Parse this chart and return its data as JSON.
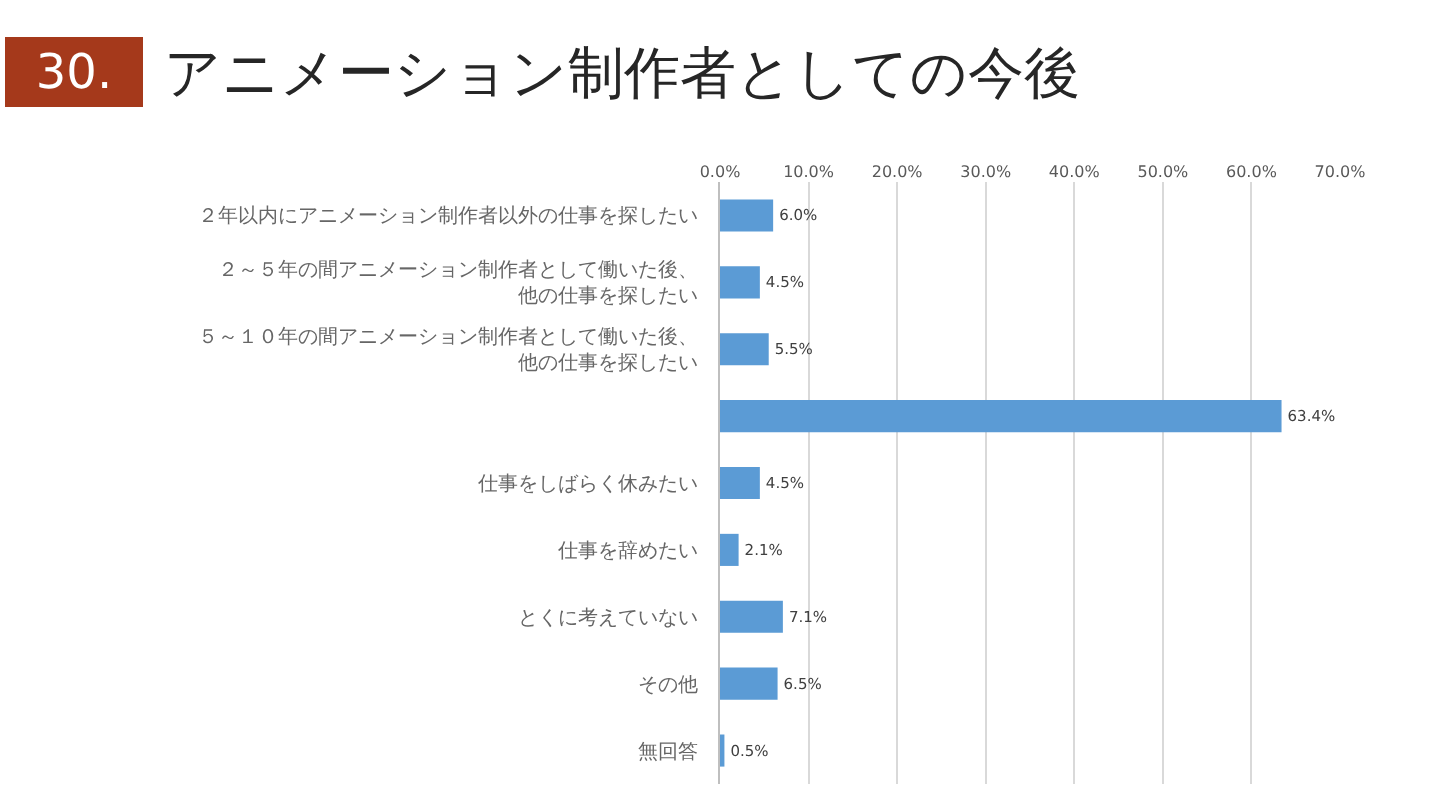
{
  "chart_data": {
    "type": "bar",
    "orientation": "horizontal",
    "title": "アニメーション制作者としての今後",
    "annotations": [
      "30."
    ],
    "categories": [
      "２年以内にアニメーション制作者以外の仕事を探したい",
      "２～５年の間アニメーション制作者として働いた後、他の仕事を探したい",
      "５～１０年の間アニメーション制作者として働いた後、他の仕事を探したい",
      null,
      "仕事をしばらく休みたい",
      "仕事を辞めたい",
      "とくに考えていない",
      "その他",
      "無回答"
    ],
    "values": [
      6.0,
      4.5,
      5.5,
      63.4,
      4.5,
      2.1,
      7.1,
      6.5,
      0.5
    ],
    "value_labels": [
      "6.0%",
      "4.5%",
      "5.5%",
      "63.4%",
      "4.5%",
      "2.1%",
      "7.1%",
      "6.5%",
      "0.5%"
    ],
    "color": "#5b9bd5",
    "xlim": [
      0,
      70
    ],
    "xticks": [
      {
        "value": 0,
        "label": "0.0%"
      },
      {
        "value": 10,
        "label": "10.0%"
      },
      {
        "value": 20,
        "label": "20.0%"
      },
      {
        "value": 30,
        "label": "30.0%"
      },
      {
        "value": 40,
        "label": "40.0%"
      },
      {
        "value": 50,
        "label": "50.0%"
      },
      {
        "value": 60,
        "label": "60.0%"
      },
      {
        "value": 70,
        "label": "70.0%"
      }
    ],
    "grid": "x"
  }
}
